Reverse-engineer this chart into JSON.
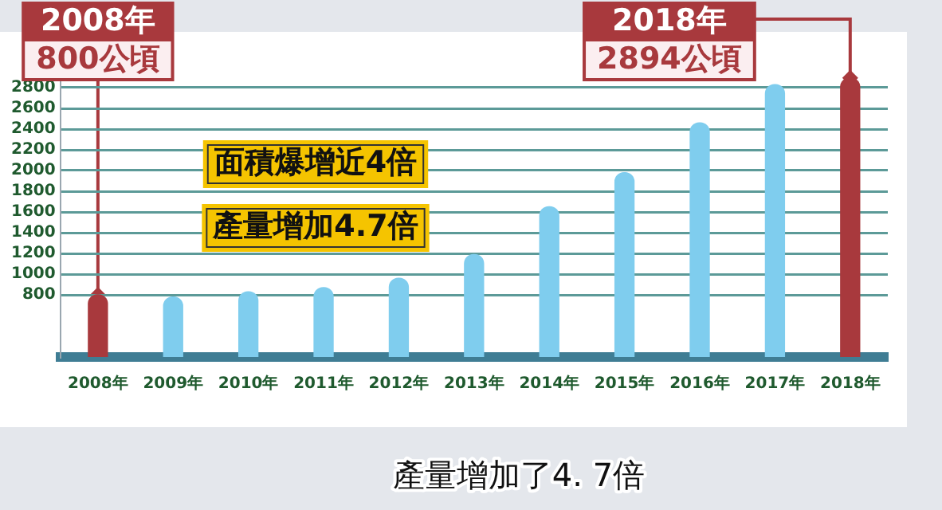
{
  "chart_data": {
    "type": "bar",
    "categories": [
      "2008年",
      "2009年",
      "2010年",
      "2011年",
      "2012年",
      "2013年",
      "2014年",
      "2015年",
      "2016年",
      "2017年",
      "2018年"
    ],
    "values": [
      800,
      780,
      830,
      870,
      960,
      1190,
      1650,
      1980,
      2460,
      2830,
      2894
    ],
    "colors": [
      "#a8393d",
      "#7fcdee",
      "#7fcdee",
      "#7fcdee",
      "#7fcdee",
      "#7fcdee",
      "#7fcdee",
      "#7fcdee",
      "#7fcdee",
      "#7fcdee",
      "#a8393d"
    ],
    "ylim": [
      200,
      3000
    ],
    "yticks": [
      800,
      1000,
      1200,
      1400,
      1600,
      1800,
      2000,
      2200,
      2400,
      2600,
      2800
    ],
    "grid": "y",
    "annotations": [
      {
        "text": "2008年\n800公頃",
        "x": "2008年",
        "y": 800
      },
      {
        "text": "2018年\n2894公頃",
        "x": "2018年",
        "y": 2894
      },
      "面積爆增近4倍",
      "產量增加4.7倍",
      "產量增加了4. 7倍"
    ]
  }
}
